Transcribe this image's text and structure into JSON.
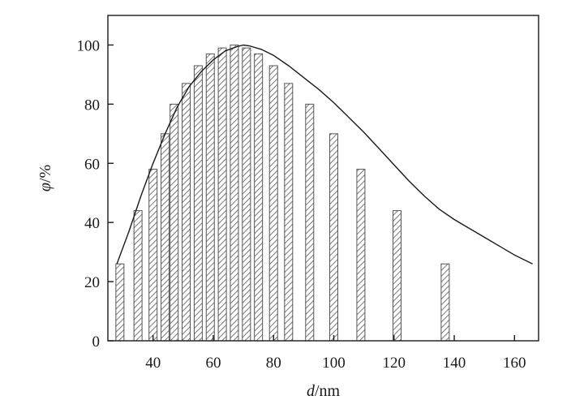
{
  "chart_data": {
    "type": "bar",
    "title": "",
    "xlabel": {
      "var": "d",
      "unit": "/nm"
    },
    "ylabel": {
      "var": "φ",
      "unit": "/%"
    },
    "xlim": [
      25,
      168
    ],
    "ylim": [
      0,
      110
    ],
    "x_ticks": [
      40,
      60,
      80,
      100,
      120,
      140,
      160
    ],
    "y_ticks": [
      0,
      20,
      40,
      60,
      80,
      100
    ],
    "grid": false,
    "legend": "none",
    "bar_fill": "hatched",
    "colors": {
      "bar_edge": "#555555",
      "hatch": "#555555",
      "curve": "#1a1a1a",
      "axis": "#1a1a1a"
    },
    "bars": {
      "x": [
        29,
        35,
        40,
        44,
        47,
        51,
        55,
        59,
        63,
        67,
        71,
        75,
        80,
        85,
        92,
        100,
        109,
        121,
        137,
        166
      ],
      "values": [
        26,
        44,
        58,
        70,
        80,
        87,
        93,
        97,
        99,
        100,
        99,
        97,
        93,
        87,
        80,
        70,
        58,
        44,
        26,
        0
      ]
    },
    "curve": {
      "x": [
        28,
        32,
        36,
        40,
        44,
        48,
        52,
        56,
        60,
        64,
        68,
        70,
        72,
        76,
        80,
        85,
        90,
        95,
        100,
        105,
        110,
        115,
        120,
        125,
        130,
        135,
        140,
        145,
        150,
        155,
        160,
        166
      ],
      "y": [
        26,
        37,
        49,
        60,
        70,
        79,
        86,
        91,
        95,
        98,
        99.5,
        100,
        99.7,
        98.5,
        96.5,
        93,
        89,
        85,
        80.5,
        75.5,
        70.5,
        65,
        59.5,
        54,
        49,
        44.5,
        41,
        38,
        35,
        32,
        29,
        26
      ]
    }
  }
}
